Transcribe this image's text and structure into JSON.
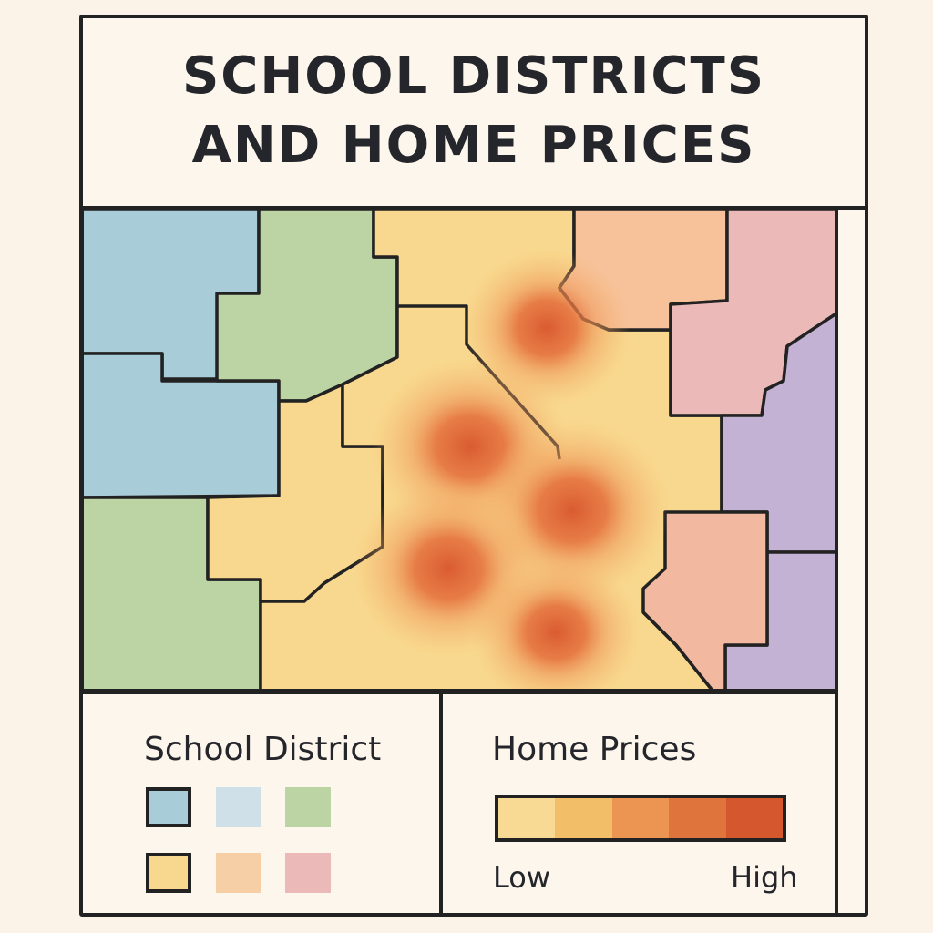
{
  "title": {
    "line1": "SCHOOL DISTRICTS",
    "line2": "AND HOME PRICES"
  },
  "colors": {
    "background": "#fdf6ec",
    "outline": "#222222",
    "district_blue": "#a9ccd9",
    "district_green": "#bcd3a4",
    "district_yellow": "#f8d88e",
    "district_peach": "#f7c29a",
    "district_pink": "#ebbab8",
    "district_purple": "#c3b2d3",
    "heat_low": "#f8d88e",
    "heat_high": "#d8552b"
  },
  "legend": {
    "school_district": {
      "title": "School District",
      "swatches": [
        {
          "color": "#a9ccd9",
          "outlined": true
        },
        {
          "color": "#cfe0e8",
          "outlined": false
        },
        {
          "color": "#bcd3a4",
          "outlined": false
        },
        {
          "color": "#f8d88e",
          "outlined": true
        },
        {
          "color": "#f7cfa6",
          "outlined": false
        },
        {
          "color": "#ebbab8",
          "outlined": false
        }
      ]
    },
    "home_prices": {
      "title": "Home Prices",
      "scale_colors": [
        "#f8da95",
        "#f3be68",
        "#ec9552",
        "#e0743d",
        "#d4572d"
      ],
      "low_label": "Low",
      "high_label": "High"
    }
  },
  "hotspots": [
    {
      "level": 1.0
    },
    {
      "level": 1.0
    },
    {
      "level": 1.0
    },
    {
      "level": 1.0
    },
    {
      "level": 0.9
    }
  ]
}
